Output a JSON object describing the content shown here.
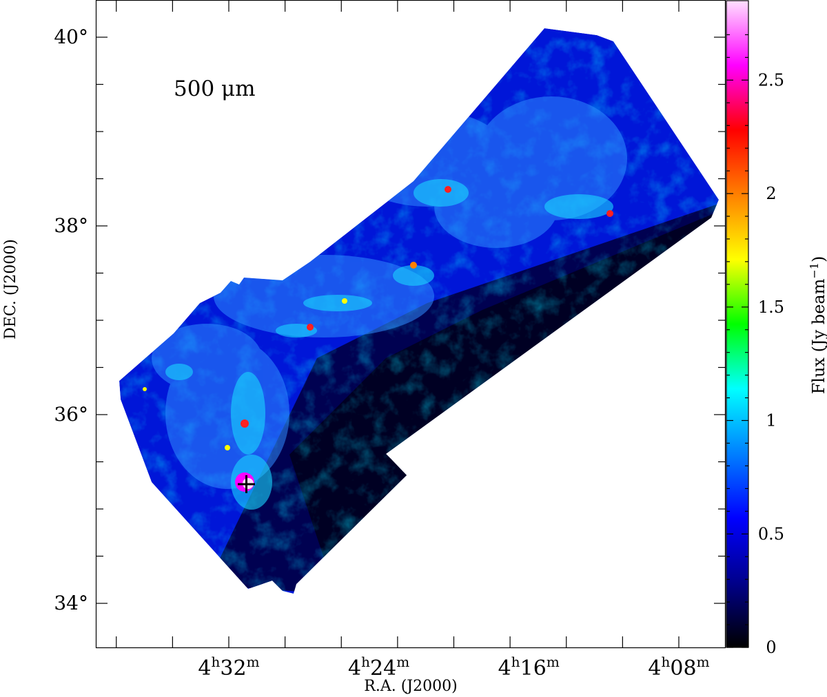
{
  "chart_data": {
    "type": "heatmap",
    "band_label": "500 μm",
    "xlabel": "R.A. (J2000)",
    "ylabel": "DEC. (J2000)",
    "colorbar_label": "Flux (Jy beam",
    "colorbar_label_sup": "−1",
    "colorbar_label_close": ")",
    "x_ticks": [
      {
        "value_hours": 4.5333,
        "h": "4",
        "m": "32"
      },
      {
        "value_hours": 4.4,
        "h": "4",
        "m": "24"
      },
      {
        "value_hours": 4.2667,
        "h": "4",
        "m": "16"
      },
      {
        "value_hours": 4.1333,
        "h": "4",
        "m": "08"
      }
    ],
    "y_ticks": [
      {
        "value_deg": 40,
        "label": "40°"
      },
      {
        "value_deg": 38,
        "label": "38°"
      },
      {
        "value_deg": 36,
        "label": "36°"
      },
      {
        "value_deg": 34,
        "label": "34°"
      }
    ],
    "xlim_hours": [
      4.6,
      4.1
    ],
    "ylim_deg": [
      33.75,
      40.5
    ],
    "colorbar": {
      "ticks": [
        {
          "value": 0,
          "label": "0"
        },
        {
          "value": 0.5,
          "label": "0.5"
        },
        {
          "value": 1,
          "label": "1"
        },
        {
          "value": 1.5,
          "label": "1.5"
        },
        {
          "value": 2,
          "label": "2"
        },
        {
          "value": 2.5,
          "label": "2.5"
        }
      ],
      "range": [
        0,
        2.85
      ],
      "colormap": [
        "#000000",
        "#00008b",
        "#0000ff",
        "#0080ff",
        "#00ffff",
        "#00ff00",
        "#ffff00",
        "#ff8000",
        "#ff0000",
        "#ff00ff",
        "#ffe0ff"
      ]
    },
    "marker": {
      "symbol": "+",
      "ra_hours": 4.5083,
      "dec_deg": 35.27
    },
    "grid": false
  }
}
